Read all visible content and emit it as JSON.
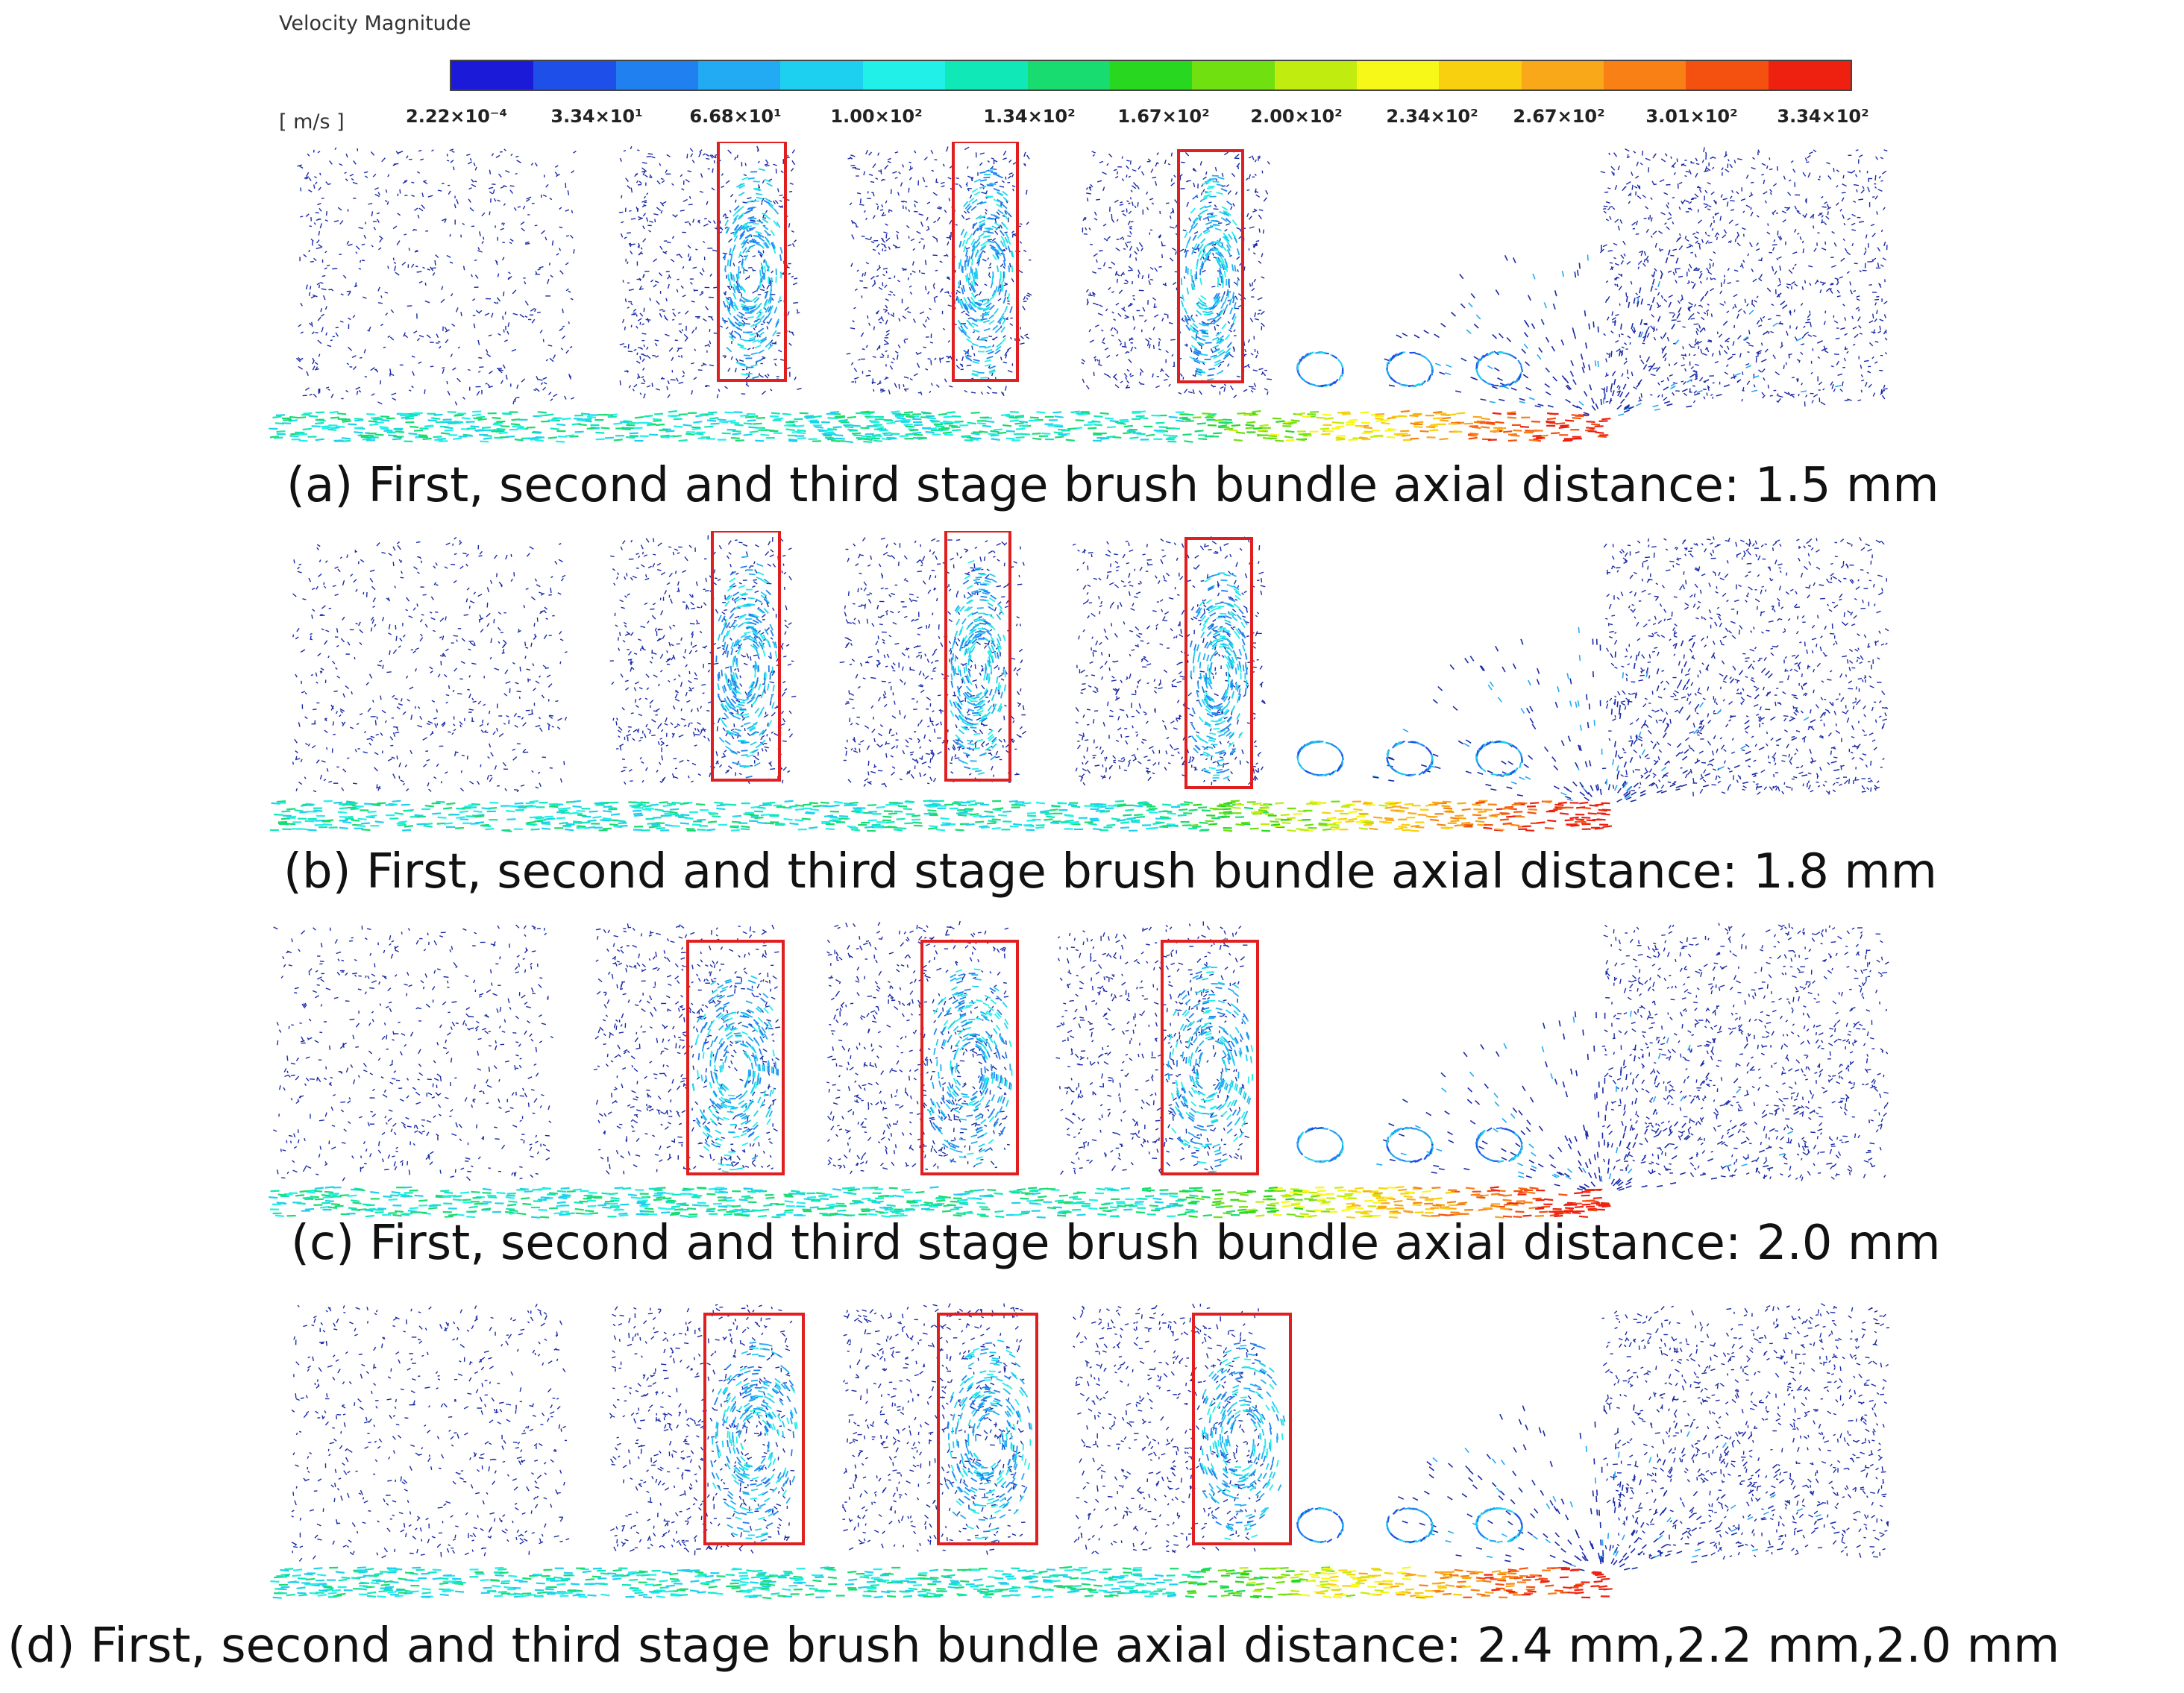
{
  "colorbar": {
    "title": "Velocity Magnitude",
    "units": "[ m/s ]",
    "colors": [
      "#1a1ad8",
      "#1e4fe8",
      "#2080f0",
      "#22aaf2",
      "#1ed0f0",
      "#20f0e8",
      "#10e8b8",
      "#18dc70",
      "#28d820",
      "#70e010",
      "#c0ec10",
      "#f8f818",
      "#f8d010",
      "#f8a818",
      "#f88014",
      "#f45010",
      "#ee2010"
    ],
    "ticks": [
      "2.22×10⁻⁴",
      "3.34×10¹",
      "6.68×10¹",
      "1.00×10²",
      "1.34×10²",
      "1.67×10²",
      "2.00×10²",
      "2.34×10²",
      "2.67×10²",
      "3.01×10²",
      "3.34×10²"
    ]
  },
  "panels": [
    {
      "caption": "(a) First, second and third stage brush bundle axial distance: 1.5 mm"
    },
    {
      "caption": "(b) First, second and third stage brush bundle axial distance: 1.8 mm"
    },
    {
      "caption": "(c) First, second and third stage brush bundle axial distance: 2.0 mm"
    },
    {
      "caption": "(d) First, second and third stage brush bundle axial distance: 2.4 mm,2.2 mm,2.0 mm"
    }
  ],
  "highlight_color": "#e02020",
  "vector_color": "#1a2aa8"
}
